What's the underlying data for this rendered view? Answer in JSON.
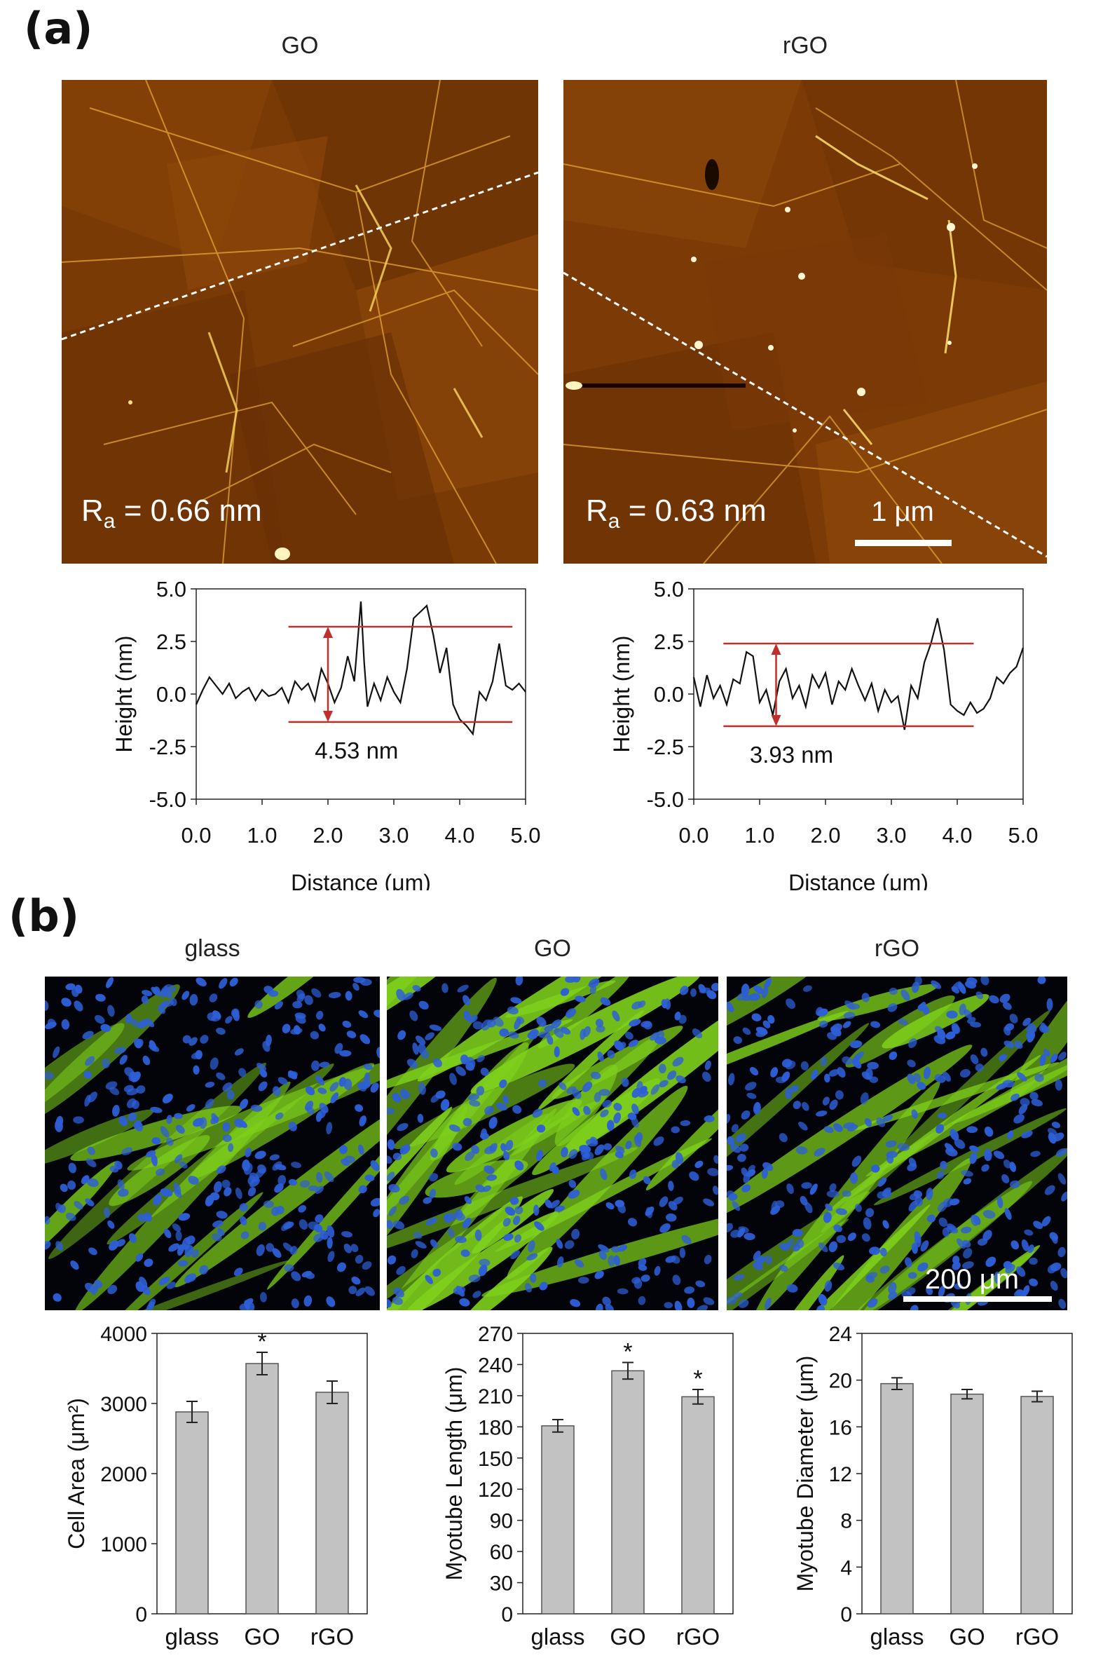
{
  "panel_a": {
    "letter": "(a)",
    "images": [
      {
        "title": "GO",
        "ra_prefix": "R",
        "ra_sub": "a",
        "ra_value": "= 0.66 nm"
      },
      {
        "title": "rGO",
        "ra_prefix": "R",
        "ra_sub": "a",
        "ra_value": "= 0.63 nm",
        "scale_bar": "1 μm"
      }
    ]
  },
  "panel_b": {
    "letter": "(b)",
    "images": [
      {
        "title": "glass"
      },
      {
        "title": "GO"
      },
      {
        "title": "rGO",
        "scale_bar": "200 μm"
      }
    ]
  },
  "colors": {
    "afm_base": "#7a3a06",
    "afm_bright": "#f2c23a",
    "profile_line": "#111111",
    "guide_line": "#c0302a",
    "bar_fill": "#c2c2c2",
    "stain_green": "#7fd11c",
    "stain_blue": "#2d5fd6"
  },
  "chart_data": [
    {
      "type": "line",
      "ylabel": "Height (nm)",
      "xlabel": "Distance (μm)",
      "xlim": [
        0,
        5
      ],
      "ylim": [
        -5,
        5
      ],
      "xticks": [
        "0.0",
        "1.0",
        "2.0",
        "3.0",
        "4.0",
        "5.0"
      ],
      "yticks": [
        "5.0",
        "2.5",
        "0.0",
        "-2.5",
        "-5.0"
      ],
      "annotation": "4.53 nm",
      "guide_lines": {
        "upper": 3.2,
        "lower": -1.33,
        "x_start": 1.4,
        "x_end": 4.8,
        "arrow_x": 2.0
      },
      "x": [
        0.0,
        0.1,
        0.2,
        0.3,
        0.4,
        0.5,
        0.6,
        0.7,
        0.8,
        0.9,
        1.0,
        1.1,
        1.2,
        1.3,
        1.4,
        1.5,
        1.6,
        1.7,
        1.8,
        1.9,
        2.0,
        2.1,
        2.2,
        2.3,
        2.4,
        2.5,
        2.55,
        2.6,
        2.7,
        2.8,
        2.9,
        3.0,
        3.1,
        3.2,
        3.3,
        3.4,
        3.5,
        3.6,
        3.7,
        3.8,
        3.9,
        4.0,
        4.1,
        4.2,
        4.3,
        4.4,
        4.5,
        4.6,
        4.7,
        4.8,
        4.9,
        5.0
      ],
      "y": [
        -0.5,
        0.2,
        0.8,
        0.4,
        0.0,
        0.5,
        -0.2,
        0.1,
        0.3,
        -0.3,
        0.2,
        -0.1,
        0.0,
        0.3,
        -0.4,
        0.6,
        0.2,
        0.5,
        -0.3,
        1.2,
        0.5,
        -0.4,
        0.3,
        1.8,
        0.6,
        4.4,
        1.5,
        -0.6,
        0.5,
        -0.3,
        0.8,
        0.1,
        -0.4,
        1.2,
        3.6,
        3.9,
        4.2,
        2.8,
        1.0,
        2.2,
        -0.5,
        -1.2,
        -1.5,
        -1.9,
        0.1,
        -0.3,
        0.6,
        2.4,
        0.4,
        0.2,
        0.5,
        0.1
      ]
    },
    {
      "type": "line",
      "ylabel": "Height (nm)",
      "xlabel": "Distance (μm)",
      "xlim": [
        0,
        5
      ],
      "ylim": [
        -5,
        5
      ],
      "xticks": [
        "0.0",
        "1.0",
        "2.0",
        "3.0",
        "4.0",
        "5.0"
      ],
      "yticks": [
        "5.0",
        "2.5",
        "0.0",
        "-2.5",
        "-5.0"
      ],
      "annotation": "3.93 nm",
      "guide_lines": {
        "upper": 2.4,
        "lower": -1.53,
        "x_start": 0.45,
        "x_end": 4.25,
        "arrow_x": 1.25
      },
      "x": [
        0.0,
        0.1,
        0.2,
        0.3,
        0.4,
        0.5,
        0.6,
        0.7,
        0.8,
        0.9,
        1.0,
        1.1,
        1.2,
        1.3,
        1.4,
        1.5,
        1.6,
        1.7,
        1.8,
        1.9,
        2.0,
        2.1,
        2.2,
        2.3,
        2.4,
        2.5,
        2.6,
        2.7,
        2.8,
        2.9,
        3.0,
        3.1,
        3.2,
        3.3,
        3.4,
        3.5,
        3.6,
        3.7,
        3.8,
        3.9,
        4.0,
        4.1,
        4.2,
        4.3,
        4.4,
        4.5,
        4.6,
        4.7,
        4.8,
        4.9,
        5.0
      ],
      "y": [
        0.8,
        -0.6,
        0.9,
        -0.2,
        0.4,
        -0.5,
        0.7,
        0.5,
        2.0,
        1.8,
        -0.4,
        0.2,
        -1.0,
        0.6,
        1.2,
        -0.2,
        0.4,
        -0.6,
        0.9,
        0.3,
        1.0,
        -0.5,
        0.6,
        0.2,
        1.2,
        0.4,
        -0.3,
        0.5,
        -0.8,
        0.2,
        -0.4,
        -0.1,
        -1.7,
        0.4,
        -0.2,
        1.5,
        2.4,
        3.6,
        2.1,
        -0.5,
        -0.8,
        -1.0,
        -0.4,
        -0.9,
        -0.7,
        -0.2,
        0.8,
        0.5,
        1.0,
        1.3,
        2.2
      ]
    },
    {
      "type": "bar",
      "ylabel": "Cell Area (μm²)",
      "categories": [
        "glass",
        "GO",
        "rGO"
      ],
      "values": [
        2880,
        3570,
        3160
      ],
      "errors": [
        150,
        160,
        160
      ],
      "significant": [
        false,
        true,
        false
      ],
      "significance_marker": "*",
      "ylim": [
        0,
        4000
      ],
      "yticks": [
        "0",
        "1000",
        "2000",
        "3000",
        "4000"
      ]
    },
    {
      "type": "bar",
      "ylabel": "Myotube Length (μm)",
      "categories": [
        "glass",
        "GO",
        "rGO"
      ],
      "values": [
        181,
        234,
        209
      ],
      "errors": [
        6,
        8,
        7
      ],
      "significant": [
        false,
        true,
        true
      ],
      "significance_marker": "*",
      "ylim": [
        0,
        270
      ],
      "yticks": [
        "0",
        "30",
        "60",
        "90",
        "120",
        "150",
        "180",
        "210",
        "240",
        "270"
      ]
    },
    {
      "type": "bar",
      "ylabel": "Myotube Diameter (μm)",
      "categories": [
        "glass",
        "GO",
        "rGO"
      ],
      "values": [
        19.7,
        18.8,
        18.6
      ],
      "errors": [
        0.5,
        0.4,
        0.45
      ],
      "significant": [
        false,
        false,
        false
      ],
      "significance_marker": "*",
      "ylim": [
        0,
        24
      ],
      "yticks": [
        "0",
        "4",
        "8",
        "12",
        "16",
        "20",
        "24"
      ]
    }
  ]
}
